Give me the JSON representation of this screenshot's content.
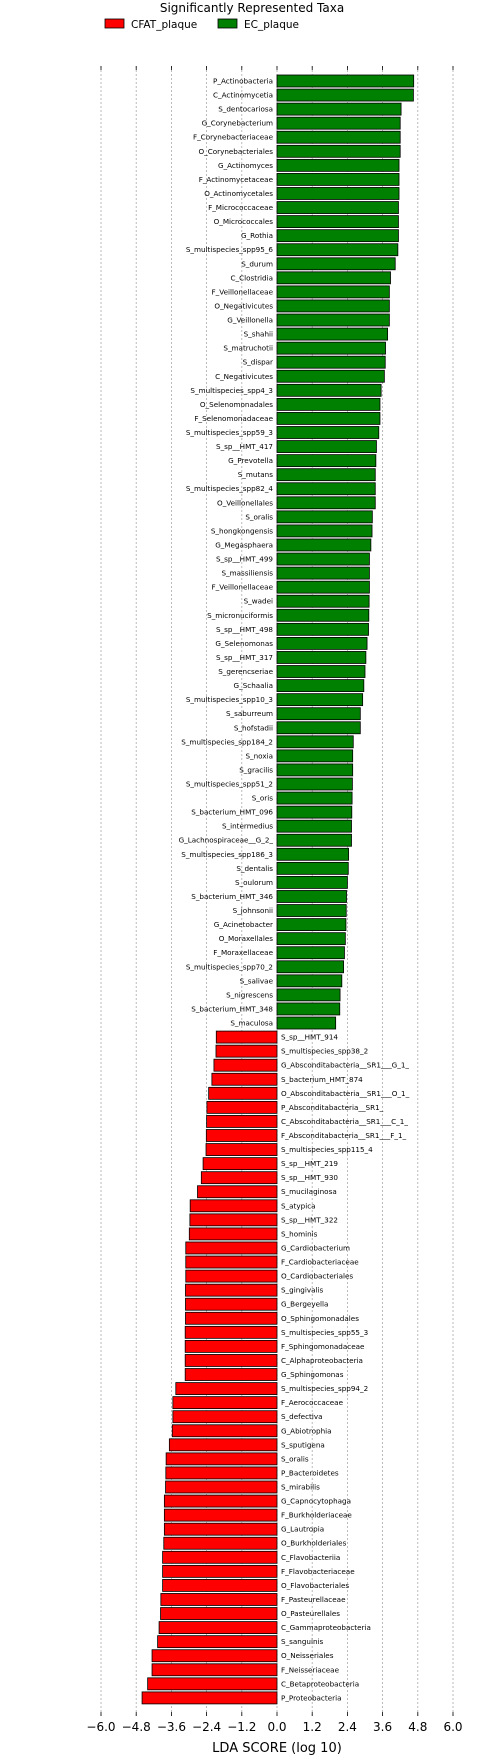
{
  "chart_data": {
    "type": "bar",
    "orientation": "horizontal",
    "title": "Significantly Represented Taxa",
    "xlabel": "LDA SCORE (log 10)",
    "ylabel": "",
    "xlim": [
      -6.0,
      6.0
    ],
    "xticks": [
      "−6.0",
      "−4.8",
      "−3.6",
      "−2.4",
      "−1.2",
      "0.0",
      "1.2",
      "2.4",
      "3.6",
      "4.8",
      "6.0"
    ],
    "grid": "vertical dashed",
    "legend_position": "top",
    "series": [
      {
        "name": "CFAT_plaque",
        "color": "#ff0000"
      },
      {
        "name": "EC_plaque",
        "color": "#008000"
      }
    ],
    "bars": [
      {
        "label": "P_Actinobacteria",
        "value": 4.66,
        "group": "EC_plaque"
      },
      {
        "label": "C_Actinomycetia",
        "value": 4.65,
        "group": "EC_plaque"
      },
      {
        "label": "S_dentocariosa",
        "value": 4.23,
        "group": "EC_plaque"
      },
      {
        "label": "G_Corynebacterium",
        "value": 4.2,
        "group": "EC_plaque"
      },
      {
        "label": "F_Corynebacteriaceae",
        "value": 4.2,
        "group": "EC_plaque"
      },
      {
        "label": "O_Corynebacteriales",
        "value": 4.2,
        "group": "EC_plaque"
      },
      {
        "label": "G_Actinomyces",
        "value": 4.16,
        "group": "EC_plaque"
      },
      {
        "label": "F_Actinomycetaceae",
        "value": 4.16,
        "group": "EC_plaque"
      },
      {
        "label": "O_Actinomycetales",
        "value": 4.16,
        "group": "EC_plaque"
      },
      {
        "label": "F_Micrococcaceae",
        "value": 4.14,
        "group": "EC_plaque"
      },
      {
        "label": "O_Micrococcales",
        "value": 4.14,
        "group": "EC_plaque"
      },
      {
        "label": "G_Rothia",
        "value": 4.14,
        "group": "EC_plaque"
      },
      {
        "label": "S_multispecies_spp95_6",
        "value": 4.12,
        "group": "EC_plaque"
      },
      {
        "label": "S_durum",
        "value": 4.03,
        "group": "EC_plaque"
      },
      {
        "label": "C_Clostridia",
        "value": 3.87,
        "group": "EC_plaque"
      },
      {
        "label": "F_Veillonellaceae",
        "value": 3.83,
        "group": "EC_plaque"
      },
      {
        "label": "O_Negativicutes",
        "value": 3.83,
        "group": "EC_plaque"
      },
      {
        "label": "G_Veillonella",
        "value": 3.83,
        "group": "EC_plaque"
      },
      {
        "label": "S_shahii",
        "value": 3.77,
        "group": "EC_plaque"
      },
      {
        "label": "S_matruchotii",
        "value": 3.7,
        "group": "EC_plaque"
      },
      {
        "label": "S_dispar",
        "value": 3.69,
        "group": "EC_plaque"
      },
      {
        "label": "C_Negativicutes",
        "value": 3.66,
        "group": "EC_plaque"
      },
      {
        "label": "S_multispecies_spp4_3",
        "value": 3.55,
        "group": "EC_plaque"
      },
      {
        "label": "O_Selenomonadales",
        "value": 3.51,
        "group": "EC_plaque"
      },
      {
        "label": "F_Selenomonadaceae",
        "value": 3.51,
        "group": "EC_plaque"
      },
      {
        "label": "S_multispecies_spp59_3",
        "value": 3.47,
        "group": "EC_plaque"
      },
      {
        "label": "S_sp__HMT_417",
        "value": 3.39,
        "group": "EC_plaque"
      },
      {
        "label": "G_Prevotella",
        "value": 3.37,
        "group": "EC_plaque"
      },
      {
        "label": "S_mutans",
        "value": 3.35,
        "group": "EC_plaque"
      },
      {
        "label": "S_multispecies_spp82_4",
        "value": 3.35,
        "group": "EC_plaque"
      },
      {
        "label": "O_Veillonellales",
        "value": 3.35,
        "group": "EC_plaque"
      },
      {
        "label": "S_oralis",
        "value": 3.25,
        "group": "EC_plaque"
      },
      {
        "label": "S_hongkongensis",
        "value": 3.24,
        "group": "EC_plaque"
      },
      {
        "label": "G_Megasphaera",
        "value": 3.2,
        "group": "EC_plaque"
      },
      {
        "label": "S_sp__HMT_499",
        "value": 3.15,
        "group": "EC_plaque"
      },
      {
        "label": "S_massiliensis",
        "value": 3.15,
        "group": "EC_plaque"
      },
      {
        "label": "F_Veillonellaceae",
        "value": 3.15,
        "group": "EC_plaque"
      },
      {
        "label": "S_wadei",
        "value": 3.14,
        "group": "EC_plaque"
      },
      {
        "label": "S_micronuciformis",
        "value": 3.13,
        "group": "EC_plaque"
      },
      {
        "label": "S_sp__HMT_498",
        "value": 3.12,
        "group": "EC_plaque"
      },
      {
        "label": "G_Selenomonas",
        "value": 3.07,
        "group": "EC_plaque"
      },
      {
        "label": "S_sp__HMT_317",
        "value": 3.03,
        "group": "EC_plaque"
      },
      {
        "label": "S_gerencseriae",
        "value": 3.0,
        "group": "EC_plaque"
      },
      {
        "label": "G_Schaalia",
        "value": 2.96,
        "group": "EC_plaque"
      },
      {
        "label": "S_multispecies_spp10_3",
        "value": 2.92,
        "group": "EC_plaque"
      },
      {
        "label": "S_saburreum",
        "value": 2.84,
        "group": "EC_plaque"
      },
      {
        "label": "S_hofstadii",
        "value": 2.84,
        "group": "EC_plaque"
      },
      {
        "label": "S_multispecies_spp184_2",
        "value": 2.6,
        "group": "EC_plaque"
      },
      {
        "label": "S_noxia",
        "value": 2.58,
        "group": "EC_plaque"
      },
      {
        "label": "S_gracilis",
        "value": 2.58,
        "group": "EC_plaque"
      },
      {
        "label": "S_multispecies_spp51_2",
        "value": 2.57,
        "group": "EC_plaque"
      },
      {
        "label": "S_oris",
        "value": 2.56,
        "group": "EC_plaque"
      },
      {
        "label": "S_bacterium_HMT_096",
        "value": 2.55,
        "group": "EC_plaque"
      },
      {
        "label": "S_intermedius",
        "value": 2.54,
        "group": "EC_plaque"
      },
      {
        "label": "G_Lachnospiraceae__G_2_",
        "value": 2.54,
        "group": "EC_plaque"
      },
      {
        "label": "S_multispecies_spp186_3",
        "value": 2.44,
        "group": "EC_plaque"
      },
      {
        "label": "S_dentalis",
        "value": 2.43,
        "group": "EC_plaque"
      },
      {
        "label": "S_oulorum",
        "value": 2.4,
        "group": "EC_plaque"
      },
      {
        "label": "S_bacterium_HMT_346",
        "value": 2.37,
        "group": "EC_plaque"
      },
      {
        "label": "S_johnsonii",
        "value": 2.36,
        "group": "EC_plaque"
      },
      {
        "label": "G_Acinetobacter",
        "value": 2.35,
        "group": "EC_plaque"
      },
      {
        "label": "O_Moraxellales",
        "value": 2.33,
        "group": "EC_plaque"
      },
      {
        "label": "F_Moraxellaceae",
        "value": 2.3,
        "group": "EC_plaque"
      },
      {
        "label": "S_multispecies_spp70_2",
        "value": 2.27,
        "group": "EC_plaque"
      },
      {
        "label": "S_salivae",
        "value": 2.21,
        "group": "EC_plaque"
      },
      {
        "label": "S_nigrescens",
        "value": 2.15,
        "group": "EC_plaque"
      },
      {
        "label": "S_bacterium_HMT_348",
        "value": 2.14,
        "group": "EC_plaque"
      },
      {
        "label": "S_maculosa",
        "value": 2.0,
        "group": "EC_plaque"
      },
      {
        "label": "S_sp__HMT_914",
        "value": -2.07,
        "group": "CFAT_plaque"
      },
      {
        "label": "S_multispecies_spp38_2",
        "value": -2.08,
        "group": "CFAT_plaque"
      },
      {
        "label": "G_Absconditabacteria__SR1___G_1_",
        "value": -2.15,
        "group": "CFAT_plaque"
      },
      {
        "label": "S_bacterium_HMT_874",
        "value": -2.22,
        "group": "CFAT_plaque"
      },
      {
        "label": "O_Absconditabacteria__SR1___O_1_",
        "value": -2.33,
        "group": "CFAT_plaque"
      },
      {
        "label": "P_Absconditabacteria__SR1_",
        "value": -2.39,
        "group": "CFAT_plaque"
      },
      {
        "label": "C_Absconditabacteria__SR1___C_1_",
        "value": -2.4,
        "group": "CFAT_plaque"
      },
      {
        "label": "F_Absconditabacteria__SR1___F_1_",
        "value": -2.41,
        "group": "CFAT_plaque"
      },
      {
        "label": "S_multispecies_spp115_4",
        "value": -2.42,
        "group": "CFAT_plaque"
      },
      {
        "label": "S_sp__HMT_219",
        "value": -2.52,
        "group": "CFAT_plaque"
      },
      {
        "label": "S_sp__HMT_930",
        "value": -2.58,
        "group": "CFAT_plaque"
      },
      {
        "label": "S_mucilaginosa",
        "value": -2.71,
        "group": "CFAT_plaque"
      },
      {
        "label": "S_atypica",
        "value": -2.96,
        "group": "CFAT_plaque"
      },
      {
        "label": "S_sp__HMT_322",
        "value": -2.97,
        "group": "CFAT_plaque"
      },
      {
        "label": "S_hominis",
        "value": -2.99,
        "group": "CFAT_plaque"
      },
      {
        "label": "G_Cardiobacterium",
        "value": -3.11,
        "group": "CFAT_plaque"
      },
      {
        "label": "F_Cardiobacteriaceae",
        "value": -3.11,
        "group": "CFAT_plaque"
      },
      {
        "label": "O_Cardiobacteriales",
        "value": -3.11,
        "group": "CFAT_plaque"
      },
      {
        "label": "S_gingivalis",
        "value": -3.12,
        "group": "CFAT_plaque"
      },
      {
        "label": "G_Bergeyella",
        "value": -3.12,
        "group": "CFAT_plaque"
      },
      {
        "label": "O_Sphingomonadales",
        "value": -3.12,
        "group": "CFAT_plaque"
      },
      {
        "label": "S_multispecies_spp55_3",
        "value": -3.13,
        "group": "CFAT_plaque"
      },
      {
        "label": "F_Sphingomonadaceae",
        "value": -3.13,
        "group": "CFAT_plaque"
      },
      {
        "label": "C_Alphaproteobacteria",
        "value": -3.13,
        "group": "CFAT_plaque"
      },
      {
        "label": "G_Sphingomonas",
        "value": -3.13,
        "group": "CFAT_plaque"
      },
      {
        "label": "S_multispecies_spp94_2",
        "value": -3.45,
        "group": "CFAT_plaque"
      },
      {
        "label": "F_Aerococcaceae",
        "value": -3.55,
        "group": "CFAT_plaque"
      },
      {
        "label": "S_defectiva",
        "value": -3.55,
        "group": "CFAT_plaque"
      },
      {
        "label": "G_Abiotrophia",
        "value": -3.57,
        "group": "CFAT_plaque"
      },
      {
        "label": "S_sputigena",
        "value": -3.67,
        "group": "CFAT_plaque"
      },
      {
        "label": "S_oralis",
        "value": -3.78,
        "group": "CFAT_plaque"
      },
      {
        "label": "P_Bacteroidetes",
        "value": -3.79,
        "group": "CFAT_plaque"
      },
      {
        "label": "S_mirabilis",
        "value": -3.8,
        "group": "CFAT_plaque"
      },
      {
        "label": "G_Capnocytophaga",
        "value": -3.84,
        "group": "CFAT_plaque"
      },
      {
        "label": "F_Burkholderiaceae",
        "value": -3.84,
        "group": "CFAT_plaque"
      },
      {
        "label": "G_Lautropia",
        "value": -3.84,
        "group": "CFAT_plaque"
      },
      {
        "label": "O_Burkholderiales",
        "value": -3.86,
        "group": "CFAT_plaque"
      },
      {
        "label": "C_Flavobacteriia",
        "value": -3.9,
        "group": "CFAT_plaque"
      },
      {
        "label": "F_Flavobacteriaceae",
        "value": -3.9,
        "group": "CFAT_plaque"
      },
      {
        "label": "O_Flavobacteriales",
        "value": -3.9,
        "group": "CFAT_plaque"
      },
      {
        "label": "F_Pasteurellaceae",
        "value": -3.96,
        "group": "CFAT_plaque"
      },
      {
        "label": "O_Pasteurellales",
        "value": -3.97,
        "group": "CFAT_plaque"
      },
      {
        "label": "C_Gammaproteobacteria",
        "value": -4.02,
        "group": "CFAT_plaque"
      },
      {
        "label": "S_sanguinis",
        "value": -4.07,
        "group": "CFAT_plaque"
      },
      {
        "label": "O_Neisseriales",
        "value": -4.26,
        "group": "CFAT_plaque"
      },
      {
        "label": "F_Neisseriaceae",
        "value": -4.26,
        "group": "CFAT_plaque"
      },
      {
        "label": "C_Betaproteobacteria",
        "value": -4.41,
        "group": "CFAT_plaque"
      },
      {
        "label": "P_Proteobacteria",
        "value": -4.6,
        "group": "CFAT_plaque"
      }
    ]
  }
}
